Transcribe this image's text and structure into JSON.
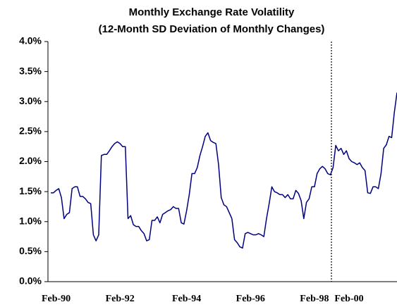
{
  "chart_data": {
    "type": "line",
    "title": [
      "Monthly Exchange Rate Volatility",
      "(12-Month SD Deviation of Monthly Changes)"
    ],
    "categories": [
      null,
      null,
      "Feb-90",
      null,
      null,
      null,
      null,
      null,
      null,
      null,
      null,
      null,
      null,
      null,
      null,
      null,
      null,
      null,
      null,
      null,
      null,
      null,
      null,
      null,
      null,
      null,
      "Feb-92",
      null,
      null,
      null,
      null,
      null,
      null,
      null,
      null,
      null,
      null,
      null,
      null,
      null,
      null,
      null,
      null,
      null,
      null,
      null,
      null,
      null,
      null,
      null,
      null,
      "Feb-94",
      null,
      null,
      null,
      null,
      null,
      null,
      null,
      null,
      null,
      null,
      null,
      null,
      null,
      null,
      null,
      null,
      null,
      null,
      null,
      null,
      null,
      null,
      null,
      "Feb-96",
      null,
      null,
      null,
      null,
      null,
      null,
      null,
      null,
      null,
      null,
      null,
      null,
      null,
      null,
      null,
      null,
      null,
      null,
      null,
      null,
      null,
      null,
      null,
      "Feb-98",
      null,
      null,
      null,
      null,
      null,
      null,
      null,
      null,
      null,
      null,
      null,
      null,
      "Feb-00",
      null,
      null,
      null,
      null,
      null,
      null,
      null,
      null,
      null,
      null,
      null,
      null,
      null,
      null,
      null,
      null,
      null,
      null
    ],
    "series": [
      {
        "color": "#000080",
        "values": [
          1.48,
          1.48,
          1.52,
          1.55,
          1.4,
          1.05,
          1.12,
          1.15,
          1.55,
          1.58,
          1.58,
          1.42,
          1.42,
          1.38,
          1.32,
          1.3,
          0.78,
          0.68,
          0.78,
          2.1,
          2.12,
          2.12,
          2.18,
          2.25,
          2.3,
          2.33,
          2.3,
          2.25,
          2.25,
          1.05,
          1.1,
          0.95,
          0.92,
          0.92,
          0.85,
          0.8,
          0.68,
          0.7,
          1.02,
          1.02,
          1.08,
          0.98,
          1.12,
          1.15,
          1.18,
          1.2,
          1.25,
          1.22,
          1.22,
          0.98,
          0.96,
          1.18,
          1.45,
          1.8,
          1.8,
          1.9,
          2.1,
          2.25,
          2.42,
          2.48,
          2.35,
          2.32,
          2.3,
          1.95,
          1.4,
          1.28,
          1.25,
          1.15,
          1.05,
          0.7,
          0.65,
          0.58,
          0.56,
          0.8,
          0.82,
          0.8,
          0.78,
          0.78,
          0.8,
          0.78,
          0.75,
          1.05,
          1.3,
          1.58,
          1.5,
          1.48,
          1.45,
          1.45,
          1.4,
          1.45,
          1.38,
          1.38,
          1.52,
          1.47,
          1.35,
          1.05,
          1.32,
          1.38,
          1.58,
          1.58,
          1.8,
          1.88,
          1.92,
          1.88,
          1.8,
          1.78,
          1.9,
          2.27,
          2.18,
          2.22,
          2.12,
          2.18,
          2.05,
          2.0,
          1.98,
          1.95,
          1.98,
          1.9,
          1.85,
          1.48,
          1.47,
          1.58,
          1.58,
          1.55,
          1.8,
          2.22,
          2.28,
          2.42,
          2.4,
          2.82,
          3.15
        ]
      }
    ],
    "ylim": [
      0,
      4
    ],
    "yticks": [
      {
        "value": 0,
        "label": "0.0%"
      },
      {
        "value": 0.5,
        "label": "0.5%"
      },
      {
        "value": 1,
        "label": "1.0%"
      },
      {
        "value": 1.5,
        "label": "1.5%"
      },
      {
        "value": 2,
        "label": "2.0%"
      },
      {
        "value": 2.5,
        "label": "2.5%"
      },
      {
        "value": 3,
        "label": "3.0%"
      },
      {
        "value": 3.5,
        "label": "3.5%"
      },
      {
        "value": 4,
        "label": "4.0%"
      }
    ],
    "grid": false
  }
}
